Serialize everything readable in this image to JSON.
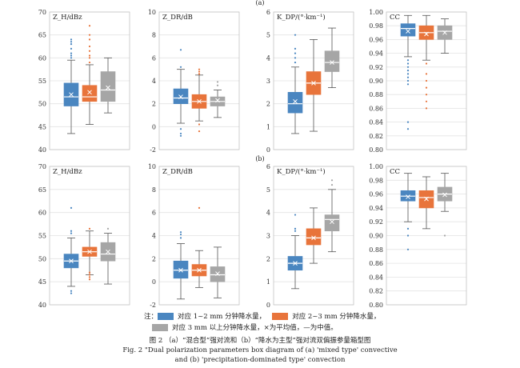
{
  "chart_data": {
    "type": "box",
    "row_labels": [
      "(a)",
      "(b)"
    ],
    "series": [
      {
        "name": "对应 1~2 mm 分钟降水量",
        "color": "#4a86c0"
      },
      {
        "name": "对应 2~3 mm 分钟降水量",
        "color": "#e8743b"
      },
      {
        "name": "对应 3 mm 以上分钟降水量",
        "color": "#a6a6a6"
      }
    ],
    "legend_note": "×为平均值，—为中值。",
    "panels": [
      {
        "id": "a-zh",
        "row": 0,
        "col": 0,
        "title": "Z_H/dBz",
        "ylim": [
          40,
          70
        ],
        "ticks": [
          40,
          45,
          50,
          55,
          60,
          65,
          70
        ],
        "boxes": [
          {
            "min": 43.5,
            "q1": 49.5,
            "median": 51.5,
            "q3": 54.5,
            "max": 59.5,
            "mean": 52,
            "outliers": [
              60,
              60.5,
              61,
              62,
              63,
              63.5,
              64
            ]
          },
          {
            "min": 45.5,
            "q1": 50.5,
            "median": 51.5,
            "q3": 54.0,
            "max": 58.5,
            "mean": 52.5,
            "outliers": [
              59,
              60,
              60.5,
              61.5,
              62.5,
              64,
              65,
              67
            ]
          },
          {
            "min": 48.0,
            "q1": 50.5,
            "median": 53.0,
            "q3": 57.0,
            "max": 60.0,
            "mean": 53.5,
            "outliers": []
          }
        ]
      },
      {
        "id": "a-zdr",
        "row": 0,
        "col": 1,
        "title": "Z_DR/dB",
        "ylim": [
          -2,
          10
        ],
        "ticks": [
          -2,
          0,
          2,
          4,
          6,
          8,
          10
        ],
        "boxes": [
          {
            "min": 0.3,
            "q1": 2.0,
            "median": 2.5,
            "q3": 3.3,
            "max": 5.0,
            "mean": 2.6,
            "outliers": [
              5.2,
              6.7,
              -0.2,
              -0.6,
              -0.8
            ]
          },
          {
            "min": 0.5,
            "q1": 1.6,
            "median": 2.2,
            "q3": 2.8,
            "max": 4.5,
            "mean": 2.2,
            "outliers": [
              4.6,
              4.8,
              5.0,
              0.2,
              -0.4
            ]
          },
          {
            "min": 0.8,
            "q1": 1.8,
            "median": 2.2,
            "q3": 2.6,
            "max": 3.2,
            "mean": 2.3,
            "outliers": [
              3.6,
              3.9
            ]
          }
        ]
      },
      {
        "id": "a-kdp",
        "row": 0,
        "col": 2,
        "title": "K_DP/(°·km⁻¹)",
        "ylim": [
          0,
          6
        ],
        "ticks": [
          0,
          1,
          2,
          3,
          4,
          5,
          6
        ],
        "boxes": [
          {
            "min": 0.7,
            "q1": 1.6,
            "median": 2.0,
            "q3": 2.5,
            "max": 3.6,
            "mean": 2.1,
            "outliers": [
              3.8,
              4.0,
              4.2,
              4.4,
              5.0
            ]
          },
          {
            "min": 0.8,
            "q1": 2.4,
            "median": 2.9,
            "q3": 3.4,
            "max": 4.8,
            "mean": 2.9,
            "outliers": []
          },
          {
            "min": 2.7,
            "q1": 3.4,
            "median": 3.8,
            "q3": 4.3,
            "max": 5.3,
            "mean": 3.8,
            "outliers": []
          }
        ]
      },
      {
        "id": "a-cc",
        "row": 0,
        "col": 3,
        "title": "CC",
        "ylim": [
          0.8,
          1.0
        ],
        "ticks": [
          0.8,
          0.82,
          0.84,
          0.86,
          0.88,
          0.9,
          0.92,
          0.94,
          0.96,
          0.98,
          1.0
        ],
        "boxes": [
          {
            "min": 0.935,
            "q1": 0.965,
            "median": 0.976,
            "q3": 0.983,
            "max": 0.995,
            "mean": 0.972,
            "outliers": [
              0.93,
              0.925,
              0.92,
              0.915,
              0.91,
              0.905,
              0.9,
              0.895,
              0.84,
              0.83
            ]
          },
          {
            "min": 0.93,
            "q1": 0.96,
            "median": 0.97,
            "q3": 0.98,
            "max": 0.995,
            "mean": 0.968,
            "outliers": [
              0.925,
              0.91,
              0.9,
              0.89,
              0.88,
              0.87,
              0.86
            ]
          },
          {
            "min": 0.94,
            "q1": 0.96,
            "median": 0.972,
            "q3": 0.98,
            "max": 0.99,
            "mean": 0.97,
            "outliers": []
          }
        ]
      },
      {
        "id": "b-zh",
        "row": 1,
        "col": 0,
        "title": "Z_H/dBz",
        "ylim": [
          40,
          70
        ],
        "ticks": [
          40,
          45,
          50,
          55,
          60,
          65,
          70
        ],
        "boxes": [
          {
            "min": 44.0,
            "q1": 48.0,
            "median": 49.5,
            "q3": 51.0,
            "max": 54.5,
            "mean": 49.5,
            "outliers": [
              55.5,
              56,
              61,
              43,
              42.5
            ]
          },
          {
            "min": 46.5,
            "q1": 50.5,
            "median": 51.5,
            "q3": 52.5,
            "max": 56.0,
            "mean": 51.5,
            "outliers": [
              47,
              46.5,
              46,
              45.5,
              56.5
            ]
          },
          {
            "min": 44.5,
            "q1": 49.5,
            "median": 51.0,
            "q3": 53.5,
            "max": 55.5,
            "mean": 51.5,
            "outliers": [
              56.5
            ]
          }
        ]
      },
      {
        "id": "b-zdr",
        "row": 1,
        "col": 1,
        "title": "Z_DR/dB",
        "ylim": [
          -2,
          10
        ],
        "ticks": [
          -2,
          0,
          2,
          4,
          6,
          8,
          10
        ],
        "boxes": [
          {
            "min": -1.5,
            "q1": 0.3,
            "median": 1.0,
            "q3": 1.8,
            "max": 3.3,
            "mean": 1.0,
            "outliers": [
              3.8,
              4.1,
              4.3
            ]
          },
          {
            "min": -0.5,
            "q1": 0.5,
            "median": 1.0,
            "q3": 1.5,
            "max": 2.7,
            "mean": 1.0,
            "outliers": [
              6.4
            ]
          },
          {
            "min": -1.4,
            "q1": 0.0,
            "median": 0.6,
            "q3": 1.3,
            "max": 3.0,
            "mean": 0.7,
            "outliers": []
          }
        ]
      },
      {
        "id": "b-kdp",
        "row": 1,
        "col": 2,
        "title": "K_DP/(°·km⁻¹)",
        "ylim": [
          0,
          6
        ],
        "ticks": [
          0,
          1,
          2,
          3,
          4,
          5,
          6
        ],
        "boxes": [
          {
            "min": 0.7,
            "q1": 1.5,
            "median": 1.8,
            "q3": 2.1,
            "max": 3.0,
            "mean": 1.8,
            "outliers": [
              3.2,
              3.3,
              3.9
            ]
          },
          {
            "min": 1.8,
            "q1": 2.6,
            "median": 2.9,
            "q3": 3.3,
            "max": 4.2,
            "mean": 2.9,
            "outliers": []
          },
          {
            "min": 2.3,
            "q1": 3.2,
            "median": 3.7,
            "q3": 3.9,
            "max": 5.0,
            "mean": 3.6,
            "outliers": [
              5.2,
              5.4
            ]
          }
        ]
      },
      {
        "id": "b-cc",
        "row": 1,
        "col": 3,
        "title": "CC",
        "ylim": [
          0.8,
          1.0
        ],
        "ticks": [
          0.8,
          0.82,
          0.84,
          0.86,
          0.88,
          0.9,
          0.92,
          0.94,
          0.96,
          0.98,
          1.0
        ],
        "boxes": [
          {
            "min": 0.92,
            "q1": 0.95,
            "median": 0.957,
            "q3": 0.965,
            "max": 0.99,
            "mean": 0.956,
            "outliers": [
              0.91,
              0.9,
              0.88
            ]
          },
          {
            "min": 0.91,
            "q1": 0.94,
            "median": 0.955,
            "q3": 0.965,
            "max": 0.985,
            "mean": 0.953,
            "outliers": []
          },
          {
            "min": 0.935,
            "q1": 0.95,
            "median": 0.96,
            "q3": 0.97,
            "max": 0.99,
            "mean": 0.959,
            "outliers": [
              0.9
            ]
          }
        ]
      }
    ]
  },
  "legend": {
    "prefix": "注：",
    "item1": "对应 1~2 mm 分钟降水量，",
    "item2": "对应 2~3 mm 分钟降水量，",
    "item3": "对应 3 mm 以上分钟降水量，×为平均值，—为中值。"
  },
  "caption": {
    "cn": "图 2 （a）“混合型”强对流和（b）“降水为主型”强对流双偏振参量箱型图",
    "en1": "Fig. 2  \"Dual polarization parameters box diagram of (a) 'mixed type' convective",
    "en2": "and (b) 'precipitation-dominated type' convection"
  }
}
